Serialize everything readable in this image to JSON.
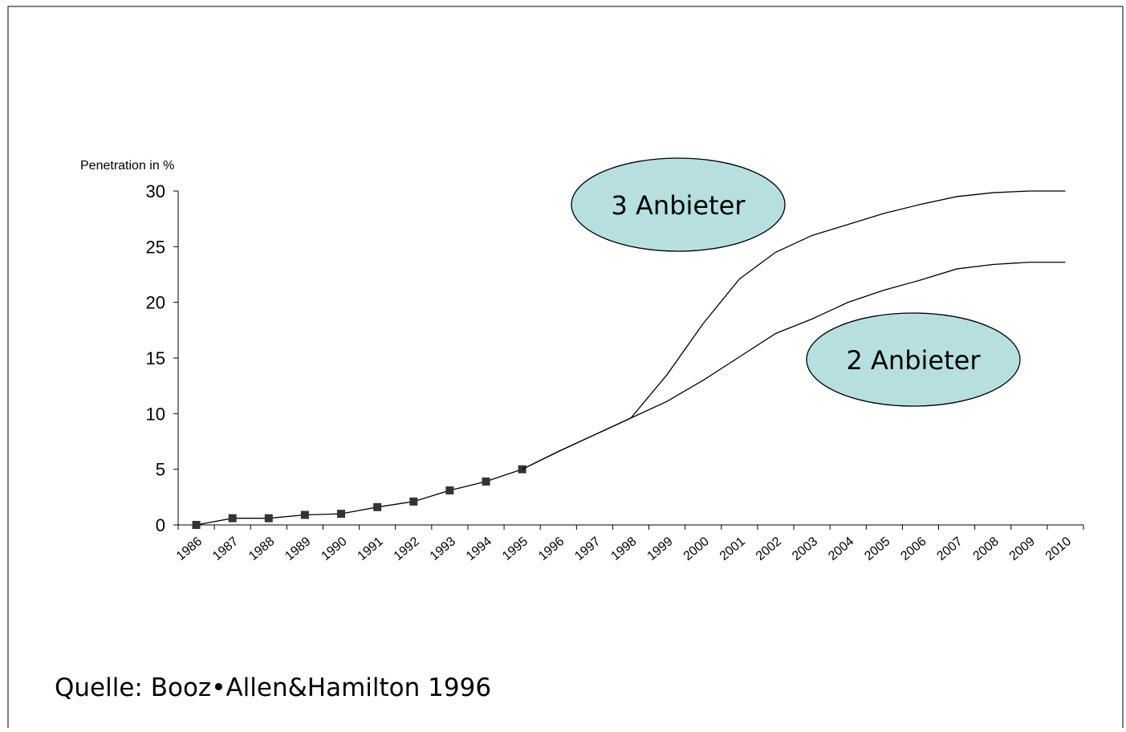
{
  "chart_data": {
    "type": "line",
    "y_axis_label": "Penetration in %",
    "source": "Quelle: Booz•Allen&Hamilton 1996",
    "categories": [
      "1986",
      "1987",
      "1988",
      "1989",
      "1990",
      "1991",
      "1992",
      "1993",
      "1994",
      "1995",
      "1996",
      "1997",
      "1998",
      "1999",
      "2000",
      "2001",
      "2002",
      "2003",
      "2004",
      "2005",
      "2006",
      "2007",
      "2008",
      "2009",
      "2010"
    ],
    "series": [
      {
        "color": "#000000",
        "markers": true,
        "values": [
          0,
          0.6,
          0.6,
          0.9,
          1.0,
          1.6,
          2.1,
          3.1,
          3.9,
          5.0,
          null,
          null,
          null,
          null,
          null,
          null,
          null,
          null,
          null,
          null,
          null,
          null,
          null,
          null,
          null
        ]
      },
      {
        "name": "3 Anbieter",
        "color": "#000000",
        "markers": false,
        "values": [
          null,
          null,
          null,
          null,
          null,
          null,
          null,
          null,
          null,
          5.0,
          6.6,
          8.1,
          9.6,
          13.5,
          18.1,
          22.1,
          24.5,
          26,
          27,
          28,
          28.8,
          29.5,
          29.85,
          30,
          30
        ]
      },
      {
        "name": "2 Anbieter",
        "color": "#000000",
        "markers": false,
        "values": [
          null,
          null,
          null,
          null,
          null,
          null,
          null,
          null,
          null,
          5.0,
          6.6,
          8.1,
          9.6,
          11.1,
          13,
          15.1,
          17.2,
          18.5,
          20,
          21.1,
          22,
          23,
          23.4,
          23.6,
          23.6
        ]
      }
    ],
    "ylim": [
      0,
      30
    ],
    "yticks": [
      0,
      5,
      10,
      15,
      20,
      25,
      30
    ]
  }
}
